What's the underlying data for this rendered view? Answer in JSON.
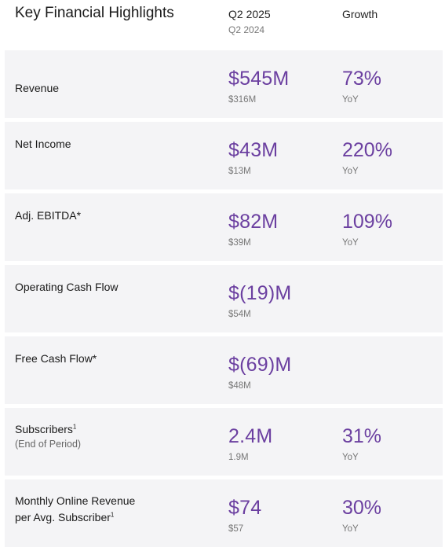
{
  "header": {
    "title": "Key Financial Highlights",
    "current_period": "Q2 2025",
    "prior_period": "Q2 2024",
    "growth_label": "Growth"
  },
  "accent_color": "#6b3fa0",
  "rows": [
    {
      "label": "Revenue",
      "sub": "",
      "value": "$545M",
      "prior": "$316M",
      "growth": "73%",
      "growth_sub": "YoY"
    },
    {
      "label": "Net Income",
      "sub": "",
      "value": "$43M",
      "prior": "$13M",
      "growth": "220%",
      "growth_sub": "YoY"
    },
    {
      "label": "Adj. EBITDA*",
      "sub": "",
      "value": "$82M",
      "prior": "$39M",
      "growth": "109%",
      "growth_sub": "YoY"
    },
    {
      "label": "Operating Cash Flow",
      "sub": "",
      "value": "$(19)M",
      "prior": "$54M",
      "growth": "",
      "growth_sub": ""
    },
    {
      "label": "Free Cash Flow*",
      "sub": "",
      "value": "$(69)M",
      "prior": "$48M",
      "growth": "",
      "growth_sub": ""
    },
    {
      "label": "Subscribers",
      "footnote": "1",
      "sub": "(End of Period)",
      "value": "2.4M",
      "prior": "1.9M",
      "growth": "31%",
      "growth_sub": "YoY"
    },
    {
      "label_line1": "Monthly Online Revenue",
      "label_line2": "per Avg. Subscriber",
      "footnote": "1",
      "value": "$74",
      "prior": "$57",
      "growth": "30%",
      "growth_sub": "YoY"
    }
  ]
}
